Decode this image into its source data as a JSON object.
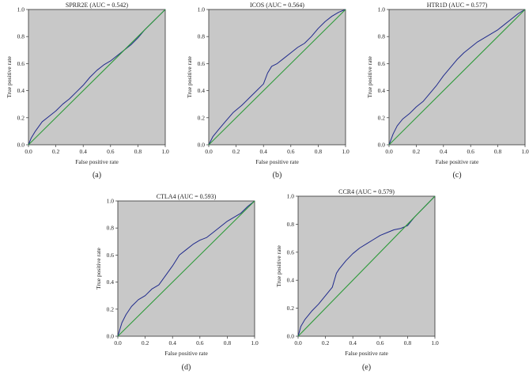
{
  "figure": {
    "panels": [
      "(a)",
      "(b)",
      "(c)",
      "(d)",
      "(e)"
    ]
  },
  "colors": {
    "plot_background": "#c8c8c8",
    "roc_curve": "#1f2a8c",
    "diagonal": "#2e9a3a",
    "axis": "#333333"
  },
  "chart_data": [
    {
      "type": "line",
      "panel": "(a)",
      "title": "SPRR2E (AUC = 0.542)",
      "xlabel": "False positive rate",
      "ylabel": "True positive rate",
      "xlim": [
        0,
        1
      ],
      "ylim": [
        0,
        1
      ],
      "xticks": [
        "0.0",
        "0.2",
        "0.4",
        "0.6",
        "0.8",
        "1.0"
      ],
      "yticks": [
        "0.0",
        "0.2",
        "0.4",
        "0.6",
        "0.8",
        "1.0"
      ],
      "series": [
        {
          "name": "ROC",
          "x": [
            0,
            0.02,
            0.05,
            0.1,
            0.15,
            0.2,
            0.25,
            0.3,
            0.35,
            0.4,
            0.45,
            0.5,
            0.55,
            0.6,
            0.65,
            0.7,
            0.75,
            0.8,
            0.85,
            0.9,
            0.95,
            1.0
          ],
          "y": [
            0,
            0.05,
            0.1,
            0.17,
            0.21,
            0.25,
            0.3,
            0.34,
            0.39,
            0.44,
            0.5,
            0.55,
            0.59,
            0.62,
            0.66,
            0.7,
            0.74,
            0.79,
            0.85,
            0.9,
            0.95,
            1.0
          ]
        },
        {
          "name": "Reference",
          "x": [
            0,
            1
          ],
          "y": [
            0,
            1
          ]
        }
      ]
    },
    {
      "type": "line",
      "panel": "(b)",
      "title": "ICOS (AUC = 0.564)",
      "xlabel": "False positive rate",
      "ylabel": "True positive rate",
      "xlim": [
        0,
        1
      ],
      "ylim": [
        0,
        1
      ],
      "xticks": [
        "0.0",
        "0.2",
        "0.4",
        "0.6",
        "0.8",
        "1.0"
      ],
      "yticks": [
        "0.0",
        "0.2",
        "0.4",
        "0.6",
        "0.8",
        "1.0"
      ],
      "series": [
        {
          "name": "ROC",
          "x": [
            0,
            0.03,
            0.07,
            0.12,
            0.18,
            0.24,
            0.3,
            0.35,
            0.4,
            0.43,
            0.46,
            0.5,
            0.55,
            0.6,
            0.65,
            0.7,
            0.75,
            0.8,
            0.85,
            0.9,
            0.95,
            1.0
          ],
          "y": [
            0,
            0.06,
            0.11,
            0.17,
            0.24,
            0.29,
            0.35,
            0.4,
            0.45,
            0.53,
            0.58,
            0.6,
            0.64,
            0.68,
            0.72,
            0.75,
            0.8,
            0.86,
            0.91,
            0.95,
            0.98,
            1.0
          ]
        },
        {
          "name": "Reference",
          "x": [
            0,
            1
          ],
          "y": [
            0,
            1
          ]
        }
      ]
    },
    {
      "type": "line",
      "panel": "(c)",
      "title": "HTR1D (AUC = 0.577)",
      "xlabel": "False positive rate",
      "ylabel": "True positive rate",
      "xlim": [
        0,
        1
      ],
      "ylim": [
        0,
        1
      ],
      "xticks": [
        "0.0",
        "0.2",
        "0.4",
        "0.6",
        "0.8",
        "1.0"
      ],
      "yticks": [
        "0.0",
        "0.2",
        "0.4",
        "0.6",
        "0.8",
        "1.0"
      ],
      "series": [
        {
          "name": "ROC",
          "x": [
            0,
            0.03,
            0.06,
            0.1,
            0.15,
            0.2,
            0.25,
            0.3,
            0.35,
            0.4,
            0.45,
            0.5,
            0.55,
            0.6,
            0.65,
            0.7,
            0.75,
            0.8,
            0.85,
            0.9,
            0.95,
            1.0
          ],
          "y": [
            0,
            0.08,
            0.14,
            0.19,
            0.23,
            0.28,
            0.32,
            0.38,
            0.44,
            0.51,
            0.57,
            0.63,
            0.68,
            0.72,
            0.76,
            0.79,
            0.82,
            0.85,
            0.89,
            0.93,
            0.97,
            1.0
          ]
        },
        {
          "name": "Reference",
          "x": [
            0,
            1
          ],
          "y": [
            0,
            1
          ]
        }
      ]
    },
    {
      "type": "line",
      "panel": "(d)",
      "title": "CTLA4 (AUC = 0.593)",
      "xlabel": "False positive rate",
      "ylabel": "True positive rate",
      "xlim": [
        0,
        1
      ],
      "ylim": [
        0,
        1
      ],
      "xticks": [
        "0.0",
        "0.2",
        "0.4",
        "0.6",
        "0.8",
        "1.0"
      ],
      "yticks": [
        "0.0",
        "0.2",
        "0.4",
        "0.6",
        "0.8",
        "1.0"
      ],
      "series": [
        {
          "name": "ROC",
          "x": [
            0,
            0.03,
            0.06,
            0.1,
            0.15,
            0.2,
            0.25,
            0.3,
            0.35,
            0.4,
            0.45,
            0.5,
            0.55,
            0.6,
            0.65,
            0.7,
            0.75,
            0.8,
            0.85,
            0.9,
            0.95,
            1.0
          ],
          "y": [
            0,
            0.1,
            0.16,
            0.22,
            0.27,
            0.3,
            0.35,
            0.38,
            0.45,
            0.52,
            0.6,
            0.64,
            0.68,
            0.71,
            0.73,
            0.77,
            0.81,
            0.85,
            0.88,
            0.91,
            0.96,
            1.0
          ]
        },
        {
          "name": "Reference",
          "x": [
            0,
            1
          ],
          "y": [
            0,
            1
          ]
        }
      ]
    },
    {
      "type": "line",
      "panel": "(e)",
      "title": "CCR4 (AUC = 0.579)",
      "xlabel": "False positive rate",
      "ylabel": "True positive rate",
      "xlim": [
        0,
        1
      ],
      "ylim": [
        0,
        1
      ],
      "xticks": [
        "0.0",
        "0.2",
        "0.4",
        "0.6",
        "0.8",
        "1.0"
      ],
      "yticks": [
        "0.0",
        "0.2",
        "0.4",
        "0.6",
        "0.8",
        "1.0"
      ],
      "series": [
        {
          "name": "ROC",
          "x": [
            0,
            0.02,
            0.05,
            0.1,
            0.15,
            0.2,
            0.25,
            0.28,
            0.3,
            0.35,
            0.4,
            0.45,
            0.5,
            0.55,
            0.6,
            0.65,
            0.7,
            0.75,
            0.8,
            0.85,
            0.9,
            0.95,
            1.0
          ],
          "y": [
            0,
            0.07,
            0.12,
            0.18,
            0.23,
            0.29,
            0.35,
            0.45,
            0.48,
            0.54,
            0.59,
            0.63,
            0.66,
            0.69,
            0.72,
            0.74,
            0.76,
            0.77,
            0.79,
            0.85,
            0.9,
            0.95,
            1.0
          ]
        },
        {
          "name": "Reference",
          "x": [
            0,
            1
          ],
          "y": [
            0,
            1
          ]
        }
      ]
    }
  ]
}
